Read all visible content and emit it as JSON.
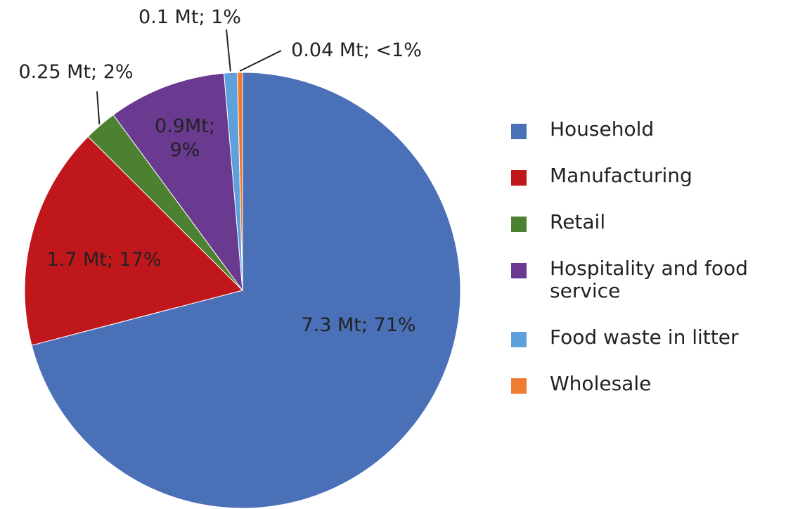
{
  "chart_data": {
    "type": "pie",
    "categories": [
      "Household",
      "Manufacturing",
      "Retail",
      "Hospitality and food service",
      "Food waste in litter",
      "Wholesale"
    ],
    "values": [
      7.3,
      1.7,
      0.25,
      0.9,
      0.1,
      0.04
    ],
    "value_labels": [
      "7.3 Mt; 71%",
      "1.7 Mt; 17%",
      "0.25 Mt; 2%",
      "0.9Mt; 9%",
      "0.1 Mt; 1%",
      "0.04 Mt; <1%"
    ],
    "colors": [
      "#4a70b7",
      "#c0171c",
      "#4b8130",
      "#6a3990",
      "#5ea0dc",
      "#ee7d31"
    ],
    "legend": "right"
  }
}
